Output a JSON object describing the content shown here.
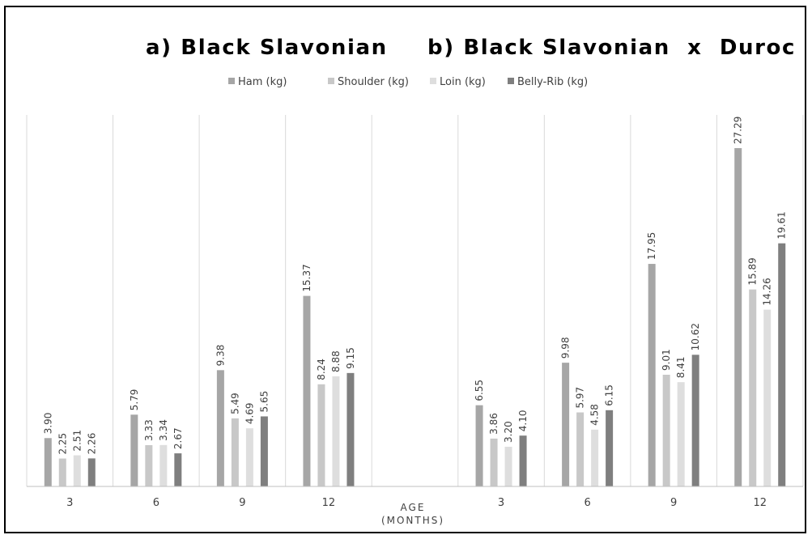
{
  "chart_data": {
    "type": "bar",
    "title_a": "a) Black Slavonian",
    "title_b": "b) Black Slavonian  x  Duroc",
    "xlabel_line1": "AGE",
    "xlabel_line2": "(MONTHS)",
    "categories": [
      "3",
      "6",
      "9",
      "12",
      "",
      "3",
      "6",
      "9",
      "12"
    ],
    "series": [
      {
        "name": "Ham (kg)",
        "color": "#a6a6a6",
        "values": [
          3.9,
          5.79,
          9.38,
          15.37,
          null,
          6.55,
          9.98,
          17.95,
          27.29
        ],
        "labels": [
          "3.90",
          "5.79",
          "9.38",
          "15.37",
          "",
          "6.55",
          "9.98",
          "17.95",
          "27.29"
        ]
      },
      {
        "name": "Shoulder (kg)",
        "color": "#c8c8c8",
        "values": [
          2.25,
          3.33,
          5.49,
          8.24,
          null,
          3.86,
          5.97,
          9.01,
          15.89
        ],
        "labels": [
          "2.25",
          "3.33",
          "5.49",
          "8.24",
          "",
          "3.86",
          "5.97",
          "9.01",
          "15.89"
        ]
      },
      {
        "name": "Loin (kg)",
        "color": "#dedede",
        "values": [
          2.51,
          3.34,
          4.69,
          8.88,
          null,
          3.2,
          4.58,
          8.41,
          14.26
        ],
        "labels": [
          "2.51",
          "3.34",
          "4.69",
          "8.88",
          "",
          "3.20",
          "4.58",
          "8.41",
          "14.26"
        ]
      },
      {
        "name": "Belly-Rib (kg)",
        "color": "#7f7f7f",
        "values": [
          2.26,
          2.67,
          5.65,
          9.15,
          null,
          4.1,
          6.15,
          10.62,
          19.61
        ],
        "labels": [
          "2.26",
          "2.67",
          "5.65",
          "9.15",
          "",
          "4.10",
          "6.15",
          "10.62",
          "19.61"
        ]
      }
    ],
    "ylim": [
      0,
      30
    ],
    "grid": "vertical category separators",
    "legend_position": "top"
  }
}
